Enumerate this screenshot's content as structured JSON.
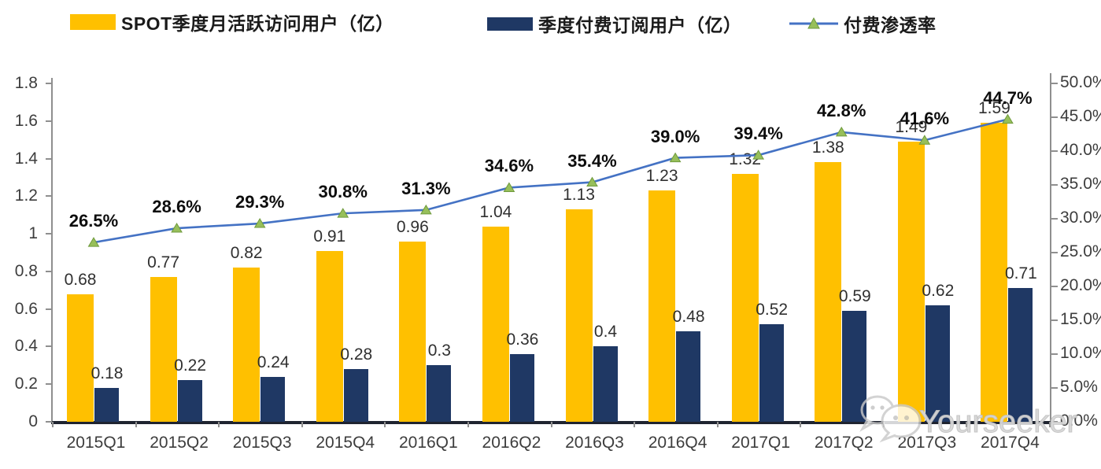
{
  "legend": [
    {
      "label": "SPOT季度月活跃访问用户（亿）",
      "color": "#FFC000",
      "type": "bar"
    },
    {
      "label": "季度付费订阅用户（亿）",
      "color": "#1F3864",
      "type": "bar"
    },
    {
      "label": "付费渗透率",
      "color": "#4472C4",
      "marker_color": "#97BF5A",
      "type": "line"
    }
  ],
  "watermark": {
    "text": "Yourseeker",
    "icon": "wechat-bubbles-icon"
  },
  "colors": {
    "mau_bar": "#FFC000",
    "subs_bar": "#1F3864",
    "line": "#4472C4",
    "marker_fill": "#97BF5A",
    "marker_stroke": "#6f9a3d",
    "axis_gray": "#8f8f8f",
    "baseline_dark": "#1f2430",
    "label_text": "#303030"
  },
  "chart_data": {
    "type": "bar",
    "subtype": "grouped-bars-with-line-combo",
    "categories": [
      "2015Q1",
      "2015Q2",
      "2015Q3",
      "2015Q4",
      "2016Q1",
      "2016Q2",
      "2016Q3",
      "2016Q4",
      "2017Q1",
      "2017Q2",
      "2017Q3",
      "2017Q4"
    ],
    "series": [
      {
        "name": "SPOT季度月活跃访问用户（亿）",
        "type": "bar",
        "axis": "left",
        "color": "#FFC000",
        "values": [
          0.68,
          0.77,
          0.82,
          0.91,
          0.96,
          1.04,
          1.13,
          1.23,
          1.32,
          1.38,
          1.49,
          1.59
        ]
      },
      {
        "name": "季度付费订阅用户（亿）",
        "type": "bar",
        "axis": "left",
        "color": "#1F3864",
        "values": [
          0.18,
          0.22,
          0.24,
          0.28,
          0.3,
          0.36,
          0.4,
          0.48,
          0.52,
          0.59,
          0.62,
          0.71
        ]
      },
      {
        "name": "付费渗透率",
        "type": "line",
        "axis": "right",
        "color": "#4472C4",
        "marker": "triangle",
        "marker_color": "#97BF5A",
        "values_percent": [
          26.5,
          28.6,
          29.3,
          30.8,
          31.3,
          34.6,
          35.4,
          39.0,
          39.4,
          42.8,
          41.6,
          44.7
        ]
      }
    ],
    "left_axis": {
      "min": 0,
      "max": 1.8,
      "step": 0.2,
      "tick_labels": [
        "0",
        "0.2",
        "0.4",
        "0.6",
        "0.8",
        "1",
        "1.2",
        "1.4",
        "1.6",
        "1.8"
      ]
    },
    "right_axis": {
      "min": 0,
      "max": 50,
      "step": 5,
      "format": "percent_one_decimal",
      "tick_labels": [
        "0.0%",
        "5.0%",
        "10.0%",
        "15.0%",
        "20.0%",
        "25.0%",
        "30.0%",
        "35.0%",
        "40.0%",
        "45.0%",
        "50.0%"
      ]
    },
    "grid": false,
    "legend_position": "top",
    "data_labels": true,
    "title": ""
  }
}
